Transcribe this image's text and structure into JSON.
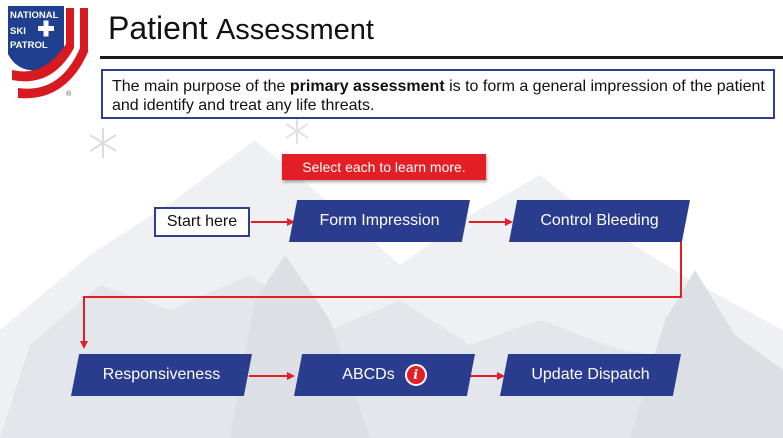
{
  "logo": {
    "line1": "NATIONAL",
    "line2": "SKI",
    "line3": "PATROL",
    "registered": "®",
    "icon": "ski-patrol-cross-logo"
  },
  "title": {
    "part1": "Patient",
    "part2": "Assessment"
  },
  "purpose": {
    "before": "The main purpose of the ",
    "bold": "primary assessment",
    "after": " is to form a general impression of the patient and identify and treat any life threats."
  },
  "cta_label": "Select each to learn more.",
  "start_label": "Start here",
  "steps": {
    "form_impression": "Form Impression",
    "control_bleeding": "Control Bleeding",
    "responsiveness": "Responsiveness",
    "abcds": "ABCDs",
    "update_dispatch": "Update Dispatch"
  },
  "info_icon": {
    "glyph": "i",
    "name": "info-icon"
  },
  "colors": {
    "accent_blue": "#2a3c8e",
    "accent_red": "#e31e24",
    "logo_navy": "#1f3f8f",
    "background_mountain": "#e9ebee"
  }
}
